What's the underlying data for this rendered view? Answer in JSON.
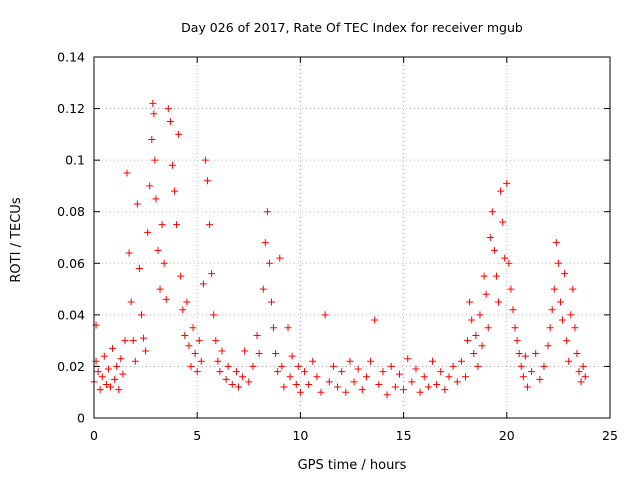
{
  "chart_data": {
    "type": "scatter",
    "title": "Day 026 of 2017, Rate Of TEC Index for receiver mgub",
    "xlabel": "GPS time / hours",
    "ylabel": "ROTI / TECUs",
    "xlim": [
      0,
      25
    ],
    "ylim": [
      0,
      0.14
    ],
    "xticks": [
      0,
      5,
      10,
      15,
      20,
      25
    ],
    "yticks": [
      0,
      0.02,
      0.04,
      0.06,
      0.08,
      0.1,
      0.12,
      0.14
    ],
    "xtick_labels": [
      "0",
      "5",
      "10",
      "15",
      "20",
      "25"
    ],
    "ytick_labels": [
      "0",
      "0.02",
      "0.04",
      "0.06",
      "0.08",
      "0.1",
      "0.12",
      "0.14"
    ],
    "grid": true,
    "marker": "+",
    "color": "#ff0000",
    "series": [
      {
        "name": "ROTI",
        "points": [
          [
            0.0,
            0.014
          ],
          [
            0.1,
            0.022
          ],
          [
            0.1,
            0.036
          ],
          [
            0.2,
            0.018
          ],
          [
            0.3,
            0.011
          ],
          [
            0.4,
            0.016
          ],
          [
            0.5,
            0.024
          ],
          [
            0.6,
            0.013
          ],
          [
            0.7,
            0.019
          ],
          [
            0.8,
            0.012
          ],
          [
            0.9,
            0.027
          ],
          [
            1.0,
            0.015
          ],
          [
            1.1,
            0.02
          ],
          [
            1.2,
            0.011
          ],
          [
            1.3,
            0.023
          ],
          [
            1.4,
            0.017
          ],
          [
            1.5,
            0.03
          ],
          [
            1.6,
            0.095
          ],
          [
            1.7,
            0.064
          ],
          [
            1.8,
            0.045
          ],
          [
            1.9,
            0.03
          ],
          [
            2.0,
            0.022
          ],
          [
            2.1,
            0.083
          ],
          [
            2.2,
            0.058
          ],
          [
            2.3,
            0.04
          ],
          [
            2.4,
            0.031
          ],
          [
            2.5,
            0.026
          ],
          [
            2.6,
            0.072
          ],
          [
            2.7,
            0.09
          ],
          [
            2.8,
            0.108
          ],
          [
            2.85,
            0.122
          ],
          [
            2.9,
            0.118
          ],
          [
            2.95,
            0.1
          ],
          [
            3.0,
            0.085
          ],
          [
            3.1,
            0.065
          ],
          [
            3.2,
            0.05
          ],
          [
            3.3,
            0.075
          ],
          [
            3.4,
            0.06
          ],
          [
            3.5,
            0.046
          ],
          [
            3.6,
            0.12
          ],
          [
            3.7,
            0.115
          ],
          [
            3.8,
            0.098
          ],
          [
            3.9,
            0.088
          ],
          [
            4.0,
            0.075
          ],
          [
            4.1,
            0.11
          ],
          [
            4.2,
            0.055
          ],
          [
            4.3,
            0.042
          ],
          [
            4.4,
            0.032
          ],
          [
            4.5,
            0.045
          ],
          [
            4.6,
            0.028
          ],
          [
            4.7,
            0.02
          ],
          [
            4.8,
            0.035
          ],
          [
            4.9,
            0.025
          ],
          [
            5.0,
            0.018
          ],
          [
            5.1,
            0.03
          ],
          [
            5.2,
            0.022
          ],
          [
            5.3,
            0.052
          ],
          [
            5.4,
            0.1
          ],
          [
            5.5,
            0.092
          ],
          [
            5.6,
            0.075
          ],
          [
            5.7,
            0.056
          ],
          [
            5.8,
            0.04
          ],
          [
            5.9,
            0.03
          ],
          [
            6.0,
            0.022
          ],
          [
            6.1,
            0.018
          ],
          [
            6.2,
            0.026
          ],
          [
            6.4,
            0.015
          ],
          [
            6.5,
            0.02
          ],
          [
            6.7,
            0.013
          ],
          [
            6.9,
            0.018
          ],
          [
            7.0,
            0.012
          ],
          [
            7.2,
            0.016
          ],
          [
            7.3,
            0.026
          ],
          [
            7.5,
            0.014
          ],
          [
            7.7,
            0.02
          ],
          [
            7.9,
            0.032
          ],
          [
            8.0,
            0.025
          ],
          [
            8.2,
            0.05
          ],
          [
            8.3,
            0.068
          ],
          [
            8.4,
            0.08
          ],
          [
            8.5,
            0.06
          ],
          [
            8.6,
            0.045
          ],
          [
            8.7,
            0.035
          ],
          [
            8.8,
            0.025
          ],
          [
            8.9,
            0.018
          ],
          [
            9.0,
            0.062
          ],
          [
            9.1,
            0.02
          ],
          [
            9.2,
            0.012
          ],
          [
            9.4,
            0.035
          ],
          [
            9.5,
            0.016
          ],
          [
            9.6,
            0.024
          ],
          [
            9.8,
            0.013
          ],
          [
            9.9,
            0.02
          ],
          [
            10.0,
            0.01
          ],
          [
            10.2,
            0.018
          ],
          [
            10.4,
            0.013
          ],
          [
            10.6,
            0.022
          ],
          [
            10.8,
            0.016
          ],
          [
            11.0,
            0.01
          ],
          [
            11.2,
            0.04
          ],
          [
            11.4,
            0.014
          ],
          [
            11.6,
            0.02
          ],
          [
            11.8,
            0.012
          ],
          [
            12.0,
            0.018
          ],
          [
            12.2,
            0.01
          ],
          [
            12.4,
            0.022
          ],
          [
            12.6,
            0.014
          ],
          [
            12.8,
            0.019
          ],
          [
            13.0,
            0.011
          ],
          [
            13.2,
            0.016
          ],
          [
            13.4,
            0.022
          ],
          [
            13.6,
            0.038
          ],
          [
            13.8,
            0.013
          ],
          [
            14.0,
            0.018
          ],
          [
            14.2,
            0.009
          ],
          [
            14.4,
            0.02
          ],
          [
            14.6,
            0.012
          ],
          [
            14.8,
            0.017
          ],
          [
            15.0,
            0.011
          ],
          [
            15.2,
            0.023
          ],
          [
            15.4,
            0.014
          ],
          [
            15.6,
            0.019
          ],
          [
            15.8,
            0.01
          ],
          [
            16.0,
            0.016
          ],
          [
            16.2,
            0.012
          ],
          [
            16.4,
            0.022
          ],
          [
            16.6,
            0.013
          ],
          [
            16.8,
            0.018
          ],
          [
            17.0,
            0.011
          ],
          [
            17.2,
            0.016
          ],
          [
            17.4,
            0.02
          ],
          [
            17.6,
            0.014
          ],
          [
            17.8,
            0.022
          ],
          [
            18.0,
            0.016
          ],
          [
            18.1,
            0.03
          ],
          [
            18.2,
            0.045
          ],
          [
            18.3,
            0.038
          ],
          [
            18.4,
            0.025
          ],
          [
            18.5,
            0.032
          ],
          [
            18.6,
            0.02
          ],
          [
            18.7,
            0.04
          ],
          [
            18.8,
            0.028
          ],
          [
            18.9,
            0.055
          ],
          [
            19.0,
            0.048
          ],
          [
            19.1,
            0.035
          ],
          [
            19.2,
            0.07
          ],
          [
            19.3,
            0.08
          ],
          [
            19.4,
            0.065
          ],
          [
            19.5,
            0.055
          ],
          [
            19.6,
            0.045
          ],
          [
            19.7,
            0.088
          ],
          [
            19.8,
            0.076
          ],
          [
            19.9,
            0.062
          ],
          [
            20.0,
            0.091
          ],
          [
            20.1,
            0.06
          ],
          [
            20.2,
            0.05
          ],
          [
            20.3,
            0.042
          ],
          [
            20.4,
            0.035
          ],
          [
            20.5,
            0.03
          ],
          [
            20.6,
            0.025
          ],
          [
            20.7,
            0.02
          ],
          [
            20.8,
            0.016
          ],
          [
            20.9,
            0.024
          ],
          [
            21.0,
            0.012
          ],
          [
            21.2,
            0.018
          ],
          [
            21.4,
            0.025
          ],
          [
            21.6,
            0.015
          ],
          [
            21.8,
            0.02
          ],
          [
            22.0,
            0.028
          ],
          [
            22.1,
            0.035
          ],
          [
            22.2,
            0.042
          ],
          [
            22.3,
            0.05
          ],
          [
            22.4,
            0.068
          ],
          [
            22.5,
            0.06
          ],
          [
            22.6,
            0.045
          ],
          [
            22.7,
            0.038
          ],
          [
            22.8,
            0.056
          ],
          [
            22.9,
            0.03
          ],
          [
            23.0,
            0.022
          ],
          [
            23.1,
            0.04
          ],
          [
            23.2,
            0.05
          ],
          [
            23.3,
            0.035
          ],
          [
            23.4,
            0.025
          ],
          [
            23.5,
            0.018
          ],
          [
            23.6,
            0.014
          ],
          [
            23.7,
            0.02
          ],
          [
            23.8,
            0.016
          ]
        ]
      }
    ]
  }
}
